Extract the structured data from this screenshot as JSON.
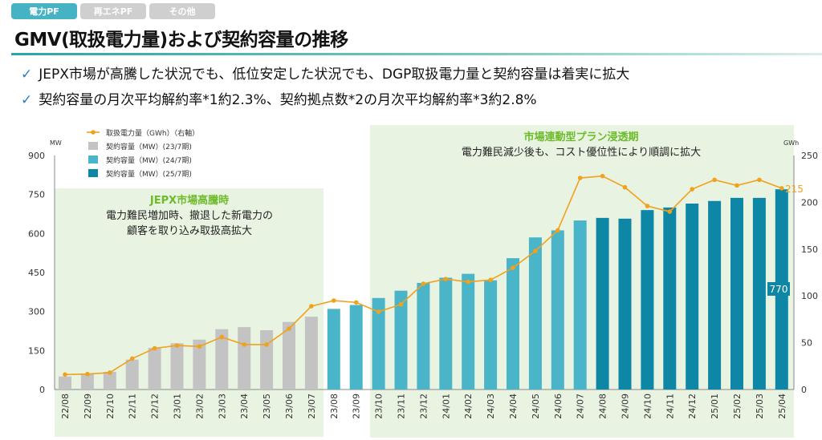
{
  "tabs": [
    {
      "label": "電力PF",
      "active": true
    },
    {
      "label": "再エネPF",
      "active": false
    },
    {
      "label": "その他",
      "active": false
    }
  ],
  "title": "GMV(取扱電力量)および契約容量の推移",
  "bullets": [
    {
      "check": "✓",
      "text": "JEPX市場が高騰した状況でも、低位安定した状況でも、DGP取扱電力量と契約容量は着実に拡大"
    },
    {
      "check": "✓",
      "text": "契約容量の月次平均解約率*1約2.3%、契約拠点数*2の月次平均解約率*3約2.8%"
    }
  ],
  "colors": {
    "gray": "#c3c3c3",
    "light_teal": "#4ab4c8",
    "dark_teal": "#0e86a6",
    "line": "#f0a21c",
    "green_light": "#e9f3e2",
    "green_title": "#6dbb2a"
  },
  "chart_data": {
    "type": "bar",
    "categories": [
      "22/08",
      "22/09",
      "22/10",
      "22/11",
      "22/12",
      "23/01",
      "23/02",
      "23/03",
      "23/04",
      "23/05",
      "23/06",
      "23/07",
      "23/08",
      "23/09",
      "23/10",
      "23/11",
      "23/12",
      "24/01",
      "24/02",
      "24/03",
      "24/04",
      "24/05",
      "24/06",
      "24/07",
      "24/08",
      "24/09",
      "24/10",
      "24/11",
      "24/12",
      "25/01",
      "25/02",
      "25/03",
      "25/04"
    ],
    "series": [
      {
        "name": "契約容量（MW）(23/7期)",
        "axis": "left",
        "color": "#c3c3c3",
        "values": [
          50,
          60,
          68,
          115,
          160,
          178,
          192,
          232,
          240,
          228,
          260,
          280,
          null,
          null,
          null,
          null,
          null,
          null,
          null,
          null,
          null,
          null,
          null,
          null,
          null,
          null,
          null,
          null,
          null,
          null,
          null,
          null,
          null
        ]
      },
      {
        "name": "契約容量（MW）(24/7期)",
        "axis": "left",
        "color": "#4ab4c8",
        "values": [
          null,
          null,
          null,
          null,
          null,
          null,
          null,
          null,
          null,
          null,
          null,
          null,
          310,
          325,
          352,
          380,
          410,
          430,
          445,
          420,
          505,
          585,
          612,
          650,
          null,
          null,
          null,
          null,
          null,
          null,
          null,
          null,
          null
        ]
      },
      {
        "name": "契約容量（MW）(25/7期)",
        "axis": "left",
        "color": "#0e86a6",
        "values": [
          null,
          null,
          null,
          null,
          null,
          null,
          null,
          null,
          null,
          null,
          null,
          null,
          null,
          null,
          null,
          null,
          null,
          null,
          null,
          null,
          null,
          null,
          null,
          null,
          660,
          657,
          690,
          700,
          715,
          725,
          737,
          737,
          770
        ]
      },
      {
        "name": "取扱電力量（GWh）（右軸）",
        "axis": "right",
        "color": "#f0a21c",
        "type": "line",
        "values": [
          16,
          16.5,
          18,
          33,
          44,
          47,
          46,
          56,
          48,
          48,
          65,
          89,
          95,
          93,
          83,
          91,
          113,
          118,
          115,
          117,
          130,
          148,
          170,
          226,
          228,
          216,
          196,
          190,
          214,
          224,
          218,
          224,
          215
        ]
      }
    ],
    "left_axis": {
      "label": "MW",
      "ticks": [
        0,
        150,
        300,
        450,
        600,
        750,
        900
      ],
      "ylim": [
        0,
        900
      ]
    },
    "right_axis": {
      "label": "GWh",
      "ticks": [
        0,
        50,
        100,
        150,
        200,
        250
      ],
      "ylim": [
        0,
        250
      ]
    },
    "data_labels": {
      "last_bar": "770",
      "last_line": "215"
    },
    "regions": [
      {
        "title": "JEPX市場高騰時",
        "lines": [
          "電力難民増加時、撤退した新電力の",
          "顧客を取り込み取扱高拡大"
        ]
      },
      {
        "title": "市場連動型プラン浸透期",
        "lines": [
          "電力難民減少後も、コスト優位性により順調に拡大"
        ]
      }
    ],
    "legend_position": "top-left"
  }
}
